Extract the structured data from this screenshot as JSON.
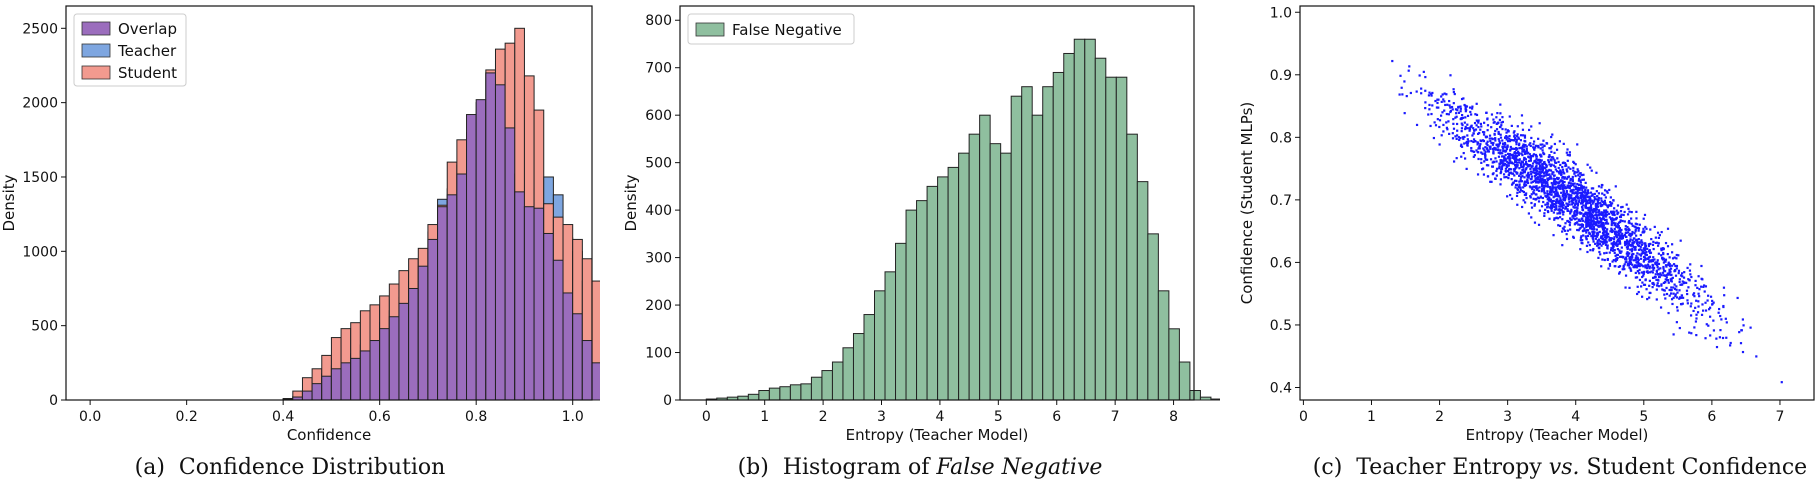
{
  "captions": {
    "a": {
      "prefix": "(a)",
      "text": "Confidence Distribution"
    },
    "b": {
      "prefix": "(b)",
      "text": "Histogram of ",
      "italic": "False Negative"
    },
    "c": {
      "prefix": "(c)",
      "text_1": "Teacher Entropy ",
      "italic": "vs.",
      "text_2": " Student Confidence"
    }
  },
  "chart_data": [
    {
      "type": "bar",
      "subtype": "overlaid-histogram",
      "xlabel": "Confidence",
      "ylabel": "Density",
      "xlim": [
        -0.05,
        1.04
      ],
      "ylim": [
        0,
        2650
      ],
      "xticks": [
        "0.0",
        "0.2",
        "0.4",
        "0.6",
        "0.8",
        "1.0"
      ],
      "yticks": [
        "0",
        "500",
        "1000",
        "1500",
        "2000",
        "2500"
      ],
      "legend_position": "top-left",
      "colors": {
        "Overlap": "#9b6dbd",
        "Teacher": "#7ea6e0",
        "Student": "#f29a8f"
      },
      "bin_start": 0.0,
      "bin_width": 0.02,
      "series": [
        {
          "name": "Overlap",
          "values": [
            0,
            0,
            0,
            0,
            0,
            0,
            0,
            0,
            0,
            0,
            0,
            0,
            0,
            0,
            0,
            0,
            0,
            0,
            0,
            0,
            5,
            20,
            60,
            110,
            160,
            210,
            250,
            280,
            330,
            400,
            480,
            560,
            650,
            750,
            900,
            1080,
            1300,
            1380,
            1520,
            1920,
            2020,
            2200,
            2120,
            1830,
            1400,
            1300,
            1290,
            1120,
            940,
            720,
            580,
            400,
            250
          ]
        },
        {
          "name": "Teacher",
          "values": [
            0,
            0,
            0,
            0,
            0,
            0,
            0,
            0,
            0,
            0,
            0,
            0,
            0,
            0,
            0,
            0,
            0,
            0,
            0,
            0,
            5,
            22,
            65,
            115,
            175,
            230,
            280,
            310,
            370,
            440,
            520,
            600,
            690,
            800,
            950,
            1130,
            1350,
            1420,
            1580,
            1700,
            2000,
            2200,
            2280,
            2150,
            1520,
            1300,
            1420,
            1500,
            1380,
            1090,
            1000,
            800,
            600,
            280
          ]
        },
        {
          "name": "Student",
          "values": [
            0,
            0,
            0,
            0,
            0,
            0,
            0,
            0,
            0,
            0,
            0,
            0,
            0,
            0,
            0,
            0,
            0,
            0,
            0,
            0,
            10,
            60,
            150,
            210,
            300,
            420,
            480,
            520,
            600,
            640,
            700,
            780,
            870,
            950,
            1020,
            1180,
            1310,
            1600,
            1750,
            1800,
            1870,
            2220,
            2360,
            2400,
            2500,
            2180,
            1950,
            1320,
            1230,
            1180,
            1080,
            950,
            800,
            420
          ]
        }
      ]
    },
    {
      "type": "bar",
      "subtype": "histogram",
      "xlabel": "Entropy (Teacher Model)",
      "ylabel": "Density",
      "xlim": [
        -0.45,
        8.35
      ],
      "ylim": [
        0,
        830
      ],
      "xticks": [
        "0",
        "1",
        "2",
        "3",
        "4",
        "5",
        "6",
        "7",
        "8"
      ],
      "yticks": [
        "0",
        "100",
        "200",
        "300",
        "400",
        "500",
        "600",
        "700",
        "800"
      ],
      "legend_position": "top-left",
      "color": "#8fbf9f",
      "bin_start": 0.0,
      "bin_width": 0.18,
      "series": [
        {
          "name": "False Negative",
          "values": [
            2,
            4,
            6,
            8,
            12,
            20,
            25,
            28,
            32,
            34,
            48,
            62,
            80,
            110,
            140,
            180,
            230,
            270,
            330,
            400,
            420,
            450,
            470,
            490,
            520,
            560,
            600,
            540,
            520,
            640,
            660,
            600,
            660,
            690,
            730,
            760,
            760,
            720,
            680,
            680,
            560,
            460,
            350,
            230,
            150,
            80,
            20,
            6,
            2,
            1,
            1
          ]
        }
      ]
    },
    {
      "type": "scatter",
      "xlabel": "Entropy (Teacher Model)",
      "ylabel": "Confidence (Student MLPs)",
      "xlim": [
        -0.05,
        7.5
      ],
      "ylim": [
        0.38,
        1.01
      ],
      "xticks": [
        "0",
        "1",
        "2",
        "3",
        "4",
        "5",
        "6",
        "7"
      ],
      "yticks": [
        "0.4",
        "0.5",
        "0.6",
        "0.7",
        "0.8",
        "0.9",
        "1.0"
      ],
      "color": "#1a1aff",
      "trend": {
        "x": [
          0.2,
          1.0,
          2.0,
          3.0,
          4.0,
          5.0,
          6.0,
          7.0
        ],
        "y": [
          0.965,
          0.905,
          0.84,
          0.77,
          0.7,
          0.61,
          0.53,
          0.45
        ]
      },
      "spread": 0.04,
      "n_points": 2600
    }
  ]
}
